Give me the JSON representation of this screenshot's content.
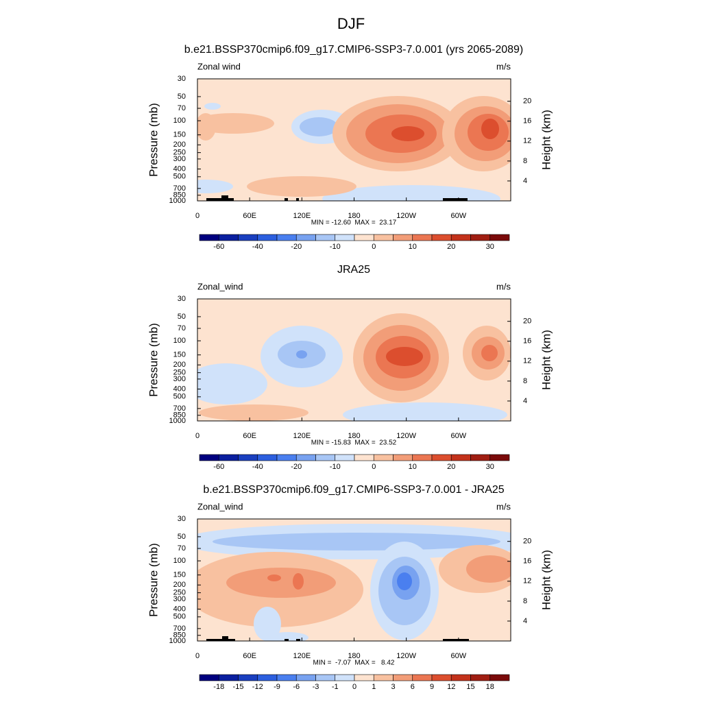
{
  "title": "DJF",
  "chart_data": [
    {
      "type": "contour",
      "title": "b.e21.BSSP370cmip6.f09_g17.CMIP6-SSP3-7.0.001 (yrs 2065-2089)",
      "left_label": "Zonal wind",
      "right_label": "m/s",
      "ylabel": "Pressure (mb)",
      "y2label": "Height (km)",
      "ylog": true,
      "xlim": [
        0,
        360
      ],
      "xticks": [
        0,
        {
          "value": 60,
          "label": "60E"
        },
        {
          "value": 120,
          "label": "120E"
        },
        180,
        {
          "value": 240,
          "label": "120W"
        },
        {
          "value": 300,
          "label": "60W"
        }
      ],
      "ylim": [
        1000,
        30
      ],
      "yticks": [
        30,
        50,
        70,
        100,
        150,
        200,
        250,
        300,
        400,
        500,
        700,
        850,
        1000
      ],
      "y2lim": [
        0,
        24.5
      ],
      "y2ticks": [
        4,
        8,
        12,
        16,
        20
      ],
      "stats": "MIN = -12.60  MAX =  23.17",
      "colorbar": {
        "labels": [
          -60,
          -40,
          -20,
          -10,
          0,
          10,
          20,
          30
        ],
        "colors": [
          "#00007f",
          "#0a1f9f",
          "#1a3fbf",
          "#2c5fdf",
          "#4a7fef",
          "#78a2f0",
          "#a8c6f5",
          "#d0e2fa",
          "#fde3d0",
          "#f8c1a0",
          "#f29d78",
          "#eb7652",
          "#dc4e2e",
          "#c3321b",
          "#a01e12",
          "#7a0a0a"
        ]
      }
    },
    {
      "type": "contour",
      "title": "JRA25",
      "left_label": "Zonal_wind",
      "right_label": "m/s",
      "ylabel": "Pressure (mb)",
      "y2label": "Height (km)",
      "ylog": true,
      "xlim": [
        0,
        360
      ],
      "xticks": [
        0,
        {
          "value": 60,
          "label": "60E"
        },
        {
          "value": 120,
          "label": "120E"
        },
        180,
        {
          "value": 240,
          "label": "120W"
        },
        {
          "value": 300,
          "label": "60W"
        }
      ],
      "ylim": [
        1000,
        30
      ],
      "yticks": [
        30,
        50,
        70,
        100,
        150,
        200,
        250,
        300,
        400,
        500,
        700,
        850,
        1000
      ],
      "y2lim": [
        0,
        24.5
      ],
      "y2ticks": [
        4,
        8,
        12,
        16,
        20
      ],
      "stats": "MIN = -15.83  MAX =  23.52",
      "colorbar": {
        "labels": [
          -60,
          -40,
          -20,
          -10,
          0,
          10,
          20,
          30
        ],
        "colors": [
          "#00007f",
          "#0a1f9f",
          "#1a3fbf",
          "#2c5fdf",
          "#4a7fef",
          "#78a2f0",
          "#a8c6f5",
          "#d0e2fa",
          "#fde3d0",
          "#f8c1a0",
          "#f29d78",
          "#eb7652",
          "#dc4e2e",
          "#c3321b",
          "#a01e12",
          "#7a0a0a"
        ]
      }
    },
    {
      "type": "contour",
      "title": "b.e21.BSSP370cmip6.f09_g17.CMIP6-SSP3-7.0.001 - JRA25",
      "left_label": "Zonal_wind",
      "right_label": "m/s",
      "ylabel": "Pressure (mb)",
      "y2label": "Height (km)",
      "ylog": true,
      "xlim": [
        0,
        360
      ],
      "xticks": [
        0,
        {
          "value": 60,
          "label": "60E"
        },
        {
          "value": 120,
          "label": "120E"
        },
        180,
        {
          "value": 240,
          "label": "120W"
        },
        {
          "value": 300,
          "label": "60W"
        }
      ],
      "ylim": [
        1000,
        30
      ],
      "yticks": [
        30,
        50,
        70,
        100,
        150,
        200,
        250,
        300,
        400,
        500,
        700,
        850,
        1000
      ],
      "y2lim": [
        0,
        24.5
      ],
      "y2ticks": [
        4,
        8,
        12,
        16,
        20
      ],
      "stats": "MIN =  -7.07  MAX =   8.42",
      "colorbar": {
        "labels": [
          -18,
          -15,
          -12,
          -9,
          -6,
          -3,
          -1,
          0,
          1,
          3,
          6,
          9,
          12,
          15,
          18
        ],
        "colors": [
          "#00007f",
          "#0a1f9f",
          "#1a3fbf",
          "#2c5fdf",
          "#4a7fef",
          "#78a2f0",
          "#a8c6f5",
          "#d0e2fa",
          "#fde3d0",
          "#f8c1a0",
          "#f29d78",
          "#eb7652",
          "#dc4e2e",
          "#c3321b",
          "#a01e12",
          "#7a0a0a"
        ]
      }
    }
  ]
}
